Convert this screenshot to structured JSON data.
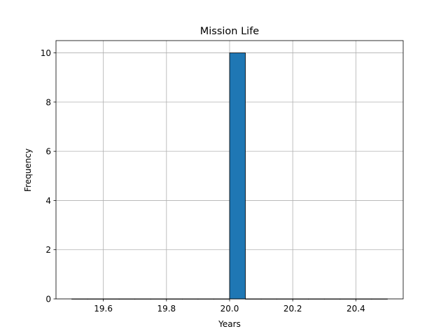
{
  "chart_data": {
    "type": "bar",
    "title": "Mission Life",
    "xlabel": "Years",
    "ylabel": "Frequency",
    "xlim": [
      19.45,
      20.55
    ],
    "ylim": [
      0,
      10.5
    ],
    "bin_edges": [
      19.5,
      19.55,
      19.6,
      19.65,
      19.7,
      19.75,
      19.8,
      19.85,
      19.9,
      19.95,
      20.0,
      20.05,
      20.1,
      20.15,
      20.2,
      20.25,
      20.3,
      20.35,
      20.4,
      20.45,
      20.5
    ],
    "values": [
      0,
      0,
      0,
      0,
      0,
      0,
      0,
      0,
      0,
      0,
      10,
      0,
      0,
      0,
      0,
      0,
      0,
      0,
      0,
      0
    ],
    "x_ticks": [
      19.6,
      19.8,
      20.0,
      20.2,
      20.4
    ],
    "x_tick_labels": [
      "19.6",
      "19.8",
      "20.0",
      "20.2",
      "20.4"
    ],
    "y_ticks": [
      0,
      2,
      4,
      6,
      8,
      10
    ],
    "y_tick_labels": [
      "0",
      "2",
      "4",
      "6",
      "8",
      "10"
    ],
    "grid": true,
    "colors": {
      "bar": "#1f77b4",
      "edge": "#000000",
      "grid": "#b0b0b0"
    }
  }
}
